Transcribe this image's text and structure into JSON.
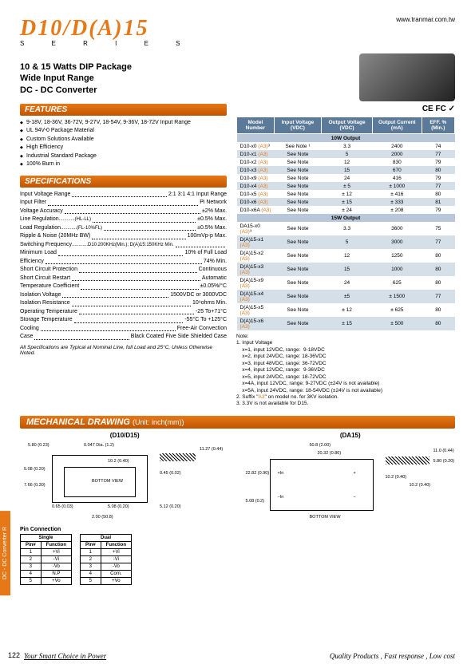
{
  "header": {
    "url": "www.tranmar.com.tw",
    "title": "D10/D(A)15",
    "series": "S E R I E S",
    "subtitle_l1": "10 & 15 Watts DIP Package",
    "subtitle_l2": "Wide Input Range",
    "subtitle_l3": "DC - DC Converter",
    "certs": "CE FC ✓"
  },
  "features": {
    "hdr": "FEATURES",
    "items": [
      "9-18V, 18-36V, 36-72V, 9-27V, 18-54V, 9-36V, 18-72V Input Range",
      "UL 94V-0 Package Material",
      "Custom Solutions Available",
      "High Efficiency",
      "Industrial Standard Package",
      "100% Burn in"
    ]
  },
  "specs": {
    "hdr": "SPECIFICATIONS",
    "rows": [
      {
        "l": "Input Voltage Range",
        "v": "2:1 3:1 4:1 Input Range"
      },
      {
        "l": "Input Filter",
        "v": "Pi Network"
      },
      {
        "l": "Voltage Accuracy",
        "v": "±2% Max."
      },
      {
        "l": "Line Regulation",
        "m": "(HL-LL)",
        "v": "±0.5% Max."
      },
      {
        "l": "Load Regulation",
        "m": "(FL-10%FL)",
        "v": "±0.5% Max."
      },
      {
        "l": "Ripple & Noise (20MHz BW)",
        "v": "100mVp-p Max."
      },
      {
        "l": "Switching Frequency",
        "m": "D10:200KHz(Min.); D(A)15:150KHz Min.",
        "v": ""
      },
      {
        "l": "Minimum Load",
        "v": "10% of Full Load"
      },
      {
        "l": "Efficiency",
        "v": "74% Min."
      },
      {
        "l": "Short Circuit Protection",
        "v": "Continuous"
      },
      {
        "l": "Short Circuit Restart",
        "v": "Automatic"
      },
      {
        "l": "Temperature Coefficient",
        "v": "±0.05%/°C"
      },
      {
        "l": "Isolation Voltage",
        "v": "1500VDC or 3000VDC"
      },
      {
        "l": "Isolation Resistance",
        "v": "10⁹ohms Min."
      },
      {
        "l": "Operating Temperature",
        "v": "-25 To+71°C"
      },
      {
        "l": "Storage Temperature",
        "v": "-55°C To +125°C"
      },
      {
        "l": "Cooling",
        "v": "Free-Air Convection"
      },
      {
        "l": "Case",
        "v": "Black Coated Five Side Shielded Case"
      }
    ],
    "note": "All Specifications are Typical at Nominal Line, full Load and 25°C, Unless Otherwise Noted."
  },
  "datatable": {
    "headers": [
      "Model Number",
      "Input Voltage (VDC)",
      "Output Voltage (VDC)",
      "Output Current (mA)",
      "EFF. % (Min.)"
    ],
    "sections": [
      {
        "title": "10W Output",
        "rows": [
          [
            "D10-x0 (A3)³",
            "See Note ¹",
            "3.3",
            "2400",
            "74"
          ],
          [
            "D10-x1 (A3)",
            "See Note",
            "5",
            "2000",
            "77"
          ],
          [
            "D10-x2 (A3)",
            "See Note",
            "12",
            "830",
            "79"
          ],
          [
            "D10-x3 (A3)",
            "See Note",
            "15",
            "670",
            "80"
          ],
          [
            "D10-x9 (A3)",
            "See Note",
            "24",
            "416",
            "79"
          ],
          [
            "D10-x4 (A3)",
            "See Note",
            "± 5",
            "± 1000",
            "77"
          ],
          [
            "D10-x5 (A3)",
            "See Note",
            "± 12",
            "± 416",
            "80"
          ],
          [
            "D10-x6 (A3)",
            "See Note",
            "± 15",
            "± 333",
            "81"
          ],
          [
            "D10-x6A (A3)",
            "See Note",
            "± 24",
            "± 208",
            "79"
          ]
        ]
      },
      {
        "title": "15W Output",
        "rows": [
          [
            "DA15-x0 (A3)³",
            "See Note",
            "3.3",
            "3600",
            "75"
          ],
          [
            "D(A)15-x1 (A3)",
            "See Note",
            "5",
            "3000",
            "77"
          ],
          [
            "D(A)15-x2 (A3)",
            "See Note",
            "12",
            "1250",
            "80"
          ],
          [
            "D(A)15-x3 (A3)",
            "See Note",
            "15",
            "1000",
            "80"
          ],
          [
            "D(A)15-x9 (A3)",
            "See Note",
            "24",
            "625",
            "80"
          ],
          [
            "D(A)15-x4 (A3)",
            "See Note",
            "±5",
            "± 1500",
            "77"
          ],
          [
            "D(A)15-x5 (A3)",
            "See Note",
            "± 12",
            "± 625",
            "80"
          ],
          [
            "D(A)15-x6 (A3)",
            "See Note",
            "± 15",
            "± 500",
            "80"
          ]
        ]
      }
    ],
    "notes_hdr": "Note:",
    "notes": [
      "1. Input Voltage",
      "    x=1, input 12VDC, range:  9-18VDC",
      "    x=2, input 24VDC, range: 18-36VDC",
      "    x=3, input 48VDC, range: 36-72VDC",
      "    x=4, input 12VDC, range:  9-36VDC",
      "    x=5, input 24VDC, range: 18-72VDC",
      "    x=4A, input 12VDC, range: 9-27VDC (±24V is not available)",
      "    x=5A, input 24VDC, range: 18-54VDC (±24V is not available)",
      "2. Suffix \"A3\" on model no. for 3KV isolation.",
      "3. 3.3V is not available for D15."
    ]
  },
  "mech": {
    "hdr": "MECHANICAL DRAWING",
    "unit": "(Unit: inch(mm))",
    "d10_title": "(D10/D15)",
    "da15_title": "(DA15)",
    "d10_dims": {
      "w": "5.80 (0.23)",
      "dia": "0.047 Dia. (1.2)",
      "bot": "BOTTOM VIEW",
      "h1": "5.08 (0.20)",
      "h2": "7.66 (0.30)",
      "h3": "0.65 (0.03)",
      "w1": "10.2 (0.40)",
      "w2": "5.08 (0.20)",
      "w3": "2.00 (50.8)",
      "r1": "11.27 (0.44)",
      "r2": "0.45 (0.02)",
      "r3": "5.12 (0.20)"
    },
    "da15_dims": {
      "w": "50.8 (2.00)",
      "w2": "20.32 (0.80)",
      "w3": "22.82 (0.90)",
      "h": "5.08 (0.2)",
      "r": "11.0 (0.44)",
      "r2": "5.80 (0.20)",
      "r3": "10.2 (0.40)",
      "bot": "BOTTOM VIEW"
    },
    "pin_hdr": "Pin Connection",
    "single": {
      "hdr": "Single",
      "cols": [
        "Pin#",
        "Function"
      ],
      "rows": [
        [
          "1",
          "+Vi"
        ],
        [
          "2",
          "-Vi"
        ],
        [
          "3",
          "-Vo"
        ],
        [
          "4",
          "N.P"
        ],
        [
          "5",
          "+Vo"
        ]
      ]
    },
    "dual": {
      "hdr": "Dual",
      "cols": [
        "Pin#",
        "Function"
      ],
      "rows": [
        [
          "1",
          "+Vi"
        ],
        [
          "2",
          "-Vi"
        ],
        [
          "3",
          "-Vo"
        ],
        [
          "4",
          "Com."
        ],
        [
          "5",
          "+Vo"
        ]
      ]
    }
  },
  "footer": {
    "side": "DC - DC Converter R",
    "page": "122",
    "slogan_l": "Your Smart Choice in Power",
    "slogan_r": "Quality Products , Fast response , Low cost"
  }
}
